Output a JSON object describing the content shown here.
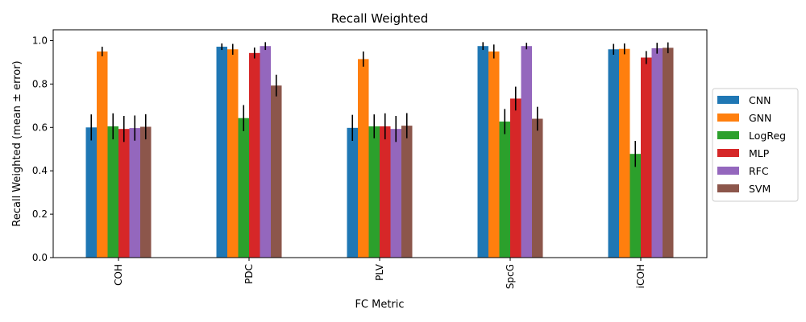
{
  "chart_data": {
    "type": "bar",
    "title": "Recall Weighted",
    "xlabel": "FC Metric",
    "ylabel": "Recall Weighted (mean ± error)",
    "ylim": [
      0,
      1.05
    ],
    "yticks": [
      "0.0",
      "0.2",
      "0.4",
      "0.6",
      "0.8",
      "1.0"
    ],
    "categories": [
      "COH",
      "PDC",
      "PLV",
      "SpcG",
      "iCOH"
    ],
    "legend_position": "right",
    "grid": false,
    "series": [
      {
        "name": "CNN",
        "color": "#1f77b4",
        "values": [
          0.6,
          0.972,
          0.598,
          0.975,
          0.96
        ],
        "errors": [
          0.06,
          0.015,
          0.06,
          0.018,
          0.025
        ]
      },
      {
        "name": "GNN",
        "color": "#ff7f0e",
        "values": [
          0.95,
          0.96,
          0.915,
          0.95,
          0.962
        ],
        "errors": [
          0.022,
          0.025,
          0.035,
          0.032,
          0.025
        ]
      },
      {
        "name": "LogReg",
        "color": "#2ca02c",
        "values": [
          0.605,
          0.643,
          0.605,
          0.627,
          0.478
        ],
        "errors": [
          0.06,
          0.06,
          0.055,
          0.058,
          0.06
        ]
      },
      {
        "name": "MLP",
        "color": "#d62728",
        "values": [
          0.593,
          0.943,
          0.605,
          0.733,
          0.922
        ],
        "errors": [
          0.06,
          0.025,
          0.06,
          0.055,
          0.03
        ]
      },
      {
        "name": "RFC",
        "color": "#9467bd",
        "values": [
          0.597,
          0.975,
          0.593,
          0.975,
          0.965
        ],
        "errors": [
          0.058,
          0.018,
          0.06,
          0.015,
          0.025
        ]
      },
      {
        "name": "SVM",
        "color": "#8c564b",
        "values": [
          0.603,
          0.793,
          0.608,
          0.64,
          0.967
        ],
        "errors": [
          0.058,
          0.05,
          0.058,
          0.055,
          0.025
        ]
      }
    ]
  }
}
